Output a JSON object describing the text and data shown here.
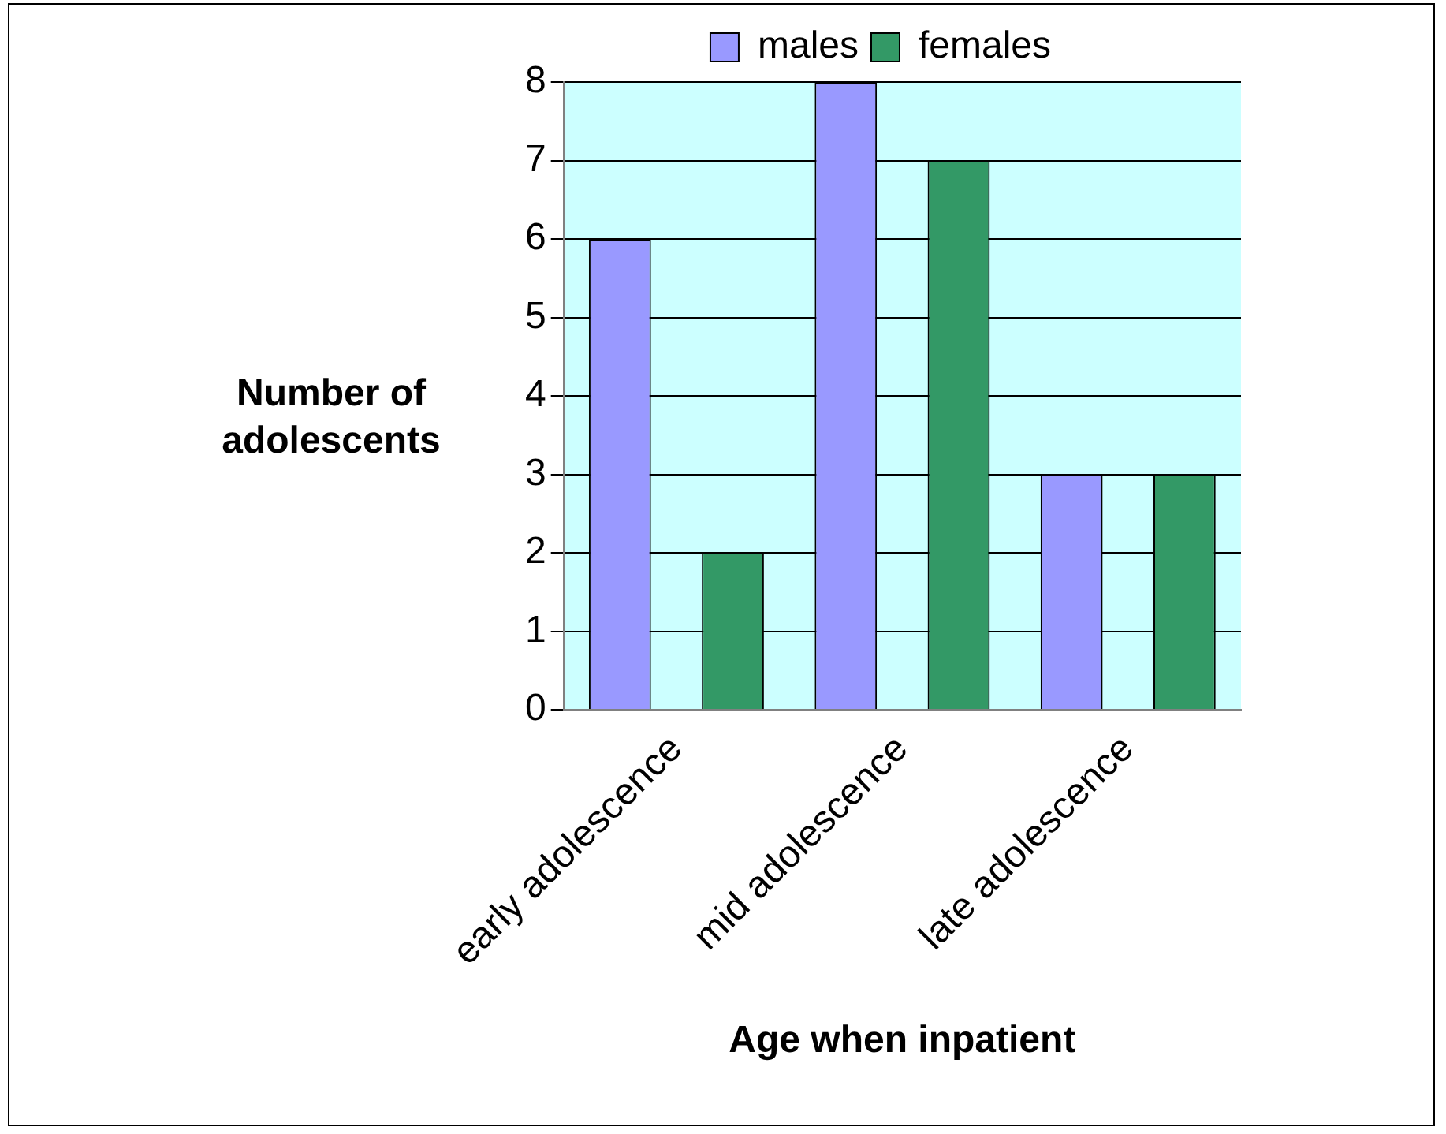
{
  "chart_data": {
    "type": "bar",
    "xlabel": "Age when inpatient",
    "ylabel": "Number of adolescents",
    "categories": [
      "early adolescence",
      "mid adolescence",
      "late adolescence"
    ],
    "series": [
      {
        "name": "males",
        "color": "#9999ff",
        "values": [
          6,
          8,
          3
        ]
      },
      {
        "name": "females",
        "color": "#339966",
        "values": [
          2,
          7,
          3
        ]
      }
    ],
    "ylim": [
      0,
      8
    ],
    "yticks": [
      0,
      1,
      2,
      3,
      4,
      5,
      6,
      7,
      8
    ],
    "grid": "y",
    "legend": "top"
  }
}
